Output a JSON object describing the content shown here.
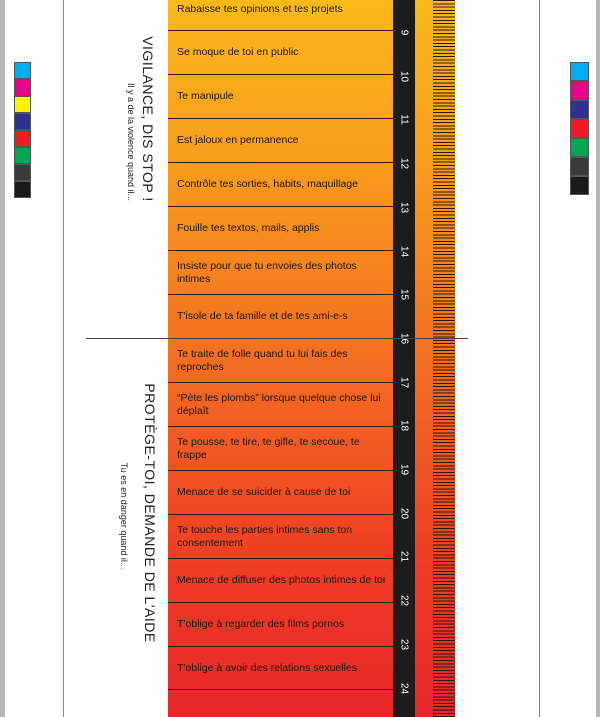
{
  "left_section": {
    "title_top": "VIGILANCE, DIS STOP !",
    "subtitle_top": "Il y a de la violence quand il...",
    "title_bottom": "PROTÈGE-TOI, DEMANDE DE L'AIDE",
    "subtitle_bottom": "Tu es en danger quand il..."
  },
  "rows": [
    {
      "label": "Rabaisse tes opinions et tes projets"
    },
    {
      "label": "Se moque de toi en public"
    },
    {
      "label": "Te manipule"
    },
    {
      "label": "Est jaloux en permanence"
    },
    {
      "label": "Contrôle tes sorties, habits, maquillage"
    },
    {
      "label": "Fouille tes textos, mails, applis"
    },
    {
      "label": "Insiste pour que tu envoies des photos intimes"
    },
    {
      "label": "T'isole de ta famille et de tes ami-e-s"
    },
    {
      "label": "Te traite de folle quand tu lui fais des reproches"
    },
    {
      "label": "“Pète les plombs” lorsque quelque chose lui déplaît"
    },
    {
      "label": "Te pousse, te tire, te gifle, te secoue, te frappe"
    },
    {
      "label": "Menace de se suicider à cause de toi"
    },
    {
      "label": "Te touche les parties intimes sans ton consentement"
    },
    {
      "label": "Menace de diffuser des photos intimes de toi"
    },
    {
      "label": "T'oblige à regarder des films pornos"
    },
    {
      "label": "T'oblige à avoir des relations sexuelles"
    }
  ],
  "scale_numbers": [
    "9",
    "10",
    "11",
    "12",
    "13",
    "14",
    "15",
    "16",
    "17",
    "18",
    "19",
    "20",
    "21",
    "22",
    "23",
    "24"
  ],
  "swatches_left": [
    "#00aeef",
    "#ec008c",
    "#fff200",
    "#2e3192",
    "#ed1c24",
    "#00a651",
    "#3a3a3a",
    "#1a1a1a"
  ],
  "swatches_right": [
    "#00aeef",
    "#ec008c",
    "#2e3192",
    "#ed1c24",
    "#00a651",
    "#3a3a3a",
    "#1a1a1a"
  ]
}
